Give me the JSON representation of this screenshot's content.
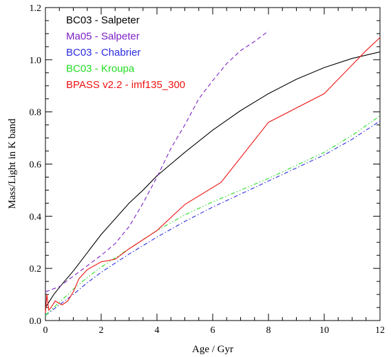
{
  "chart_data": {
    "type": "line",
    "xlabel": "Age / Gyr",
    "ylabel": "Mass/Light in K band",
    "xlim": [
      0,
      12
    ],
    "ylim": [
      0,
      1.2
    ],
    "xticks": [
      0,
      2,
      4,
      6,
      8,
      10,
      12
    ],
    "xtick_labels": [
      "0",
      "2",
      "4",
      "6",
      "8",
      "10",
      "12"
    ],
    "yticks": [
      0.0,
      0.2,
      0.4,
      0.6,
      0.8,
      1.0,
      1.2
    ],
    "ytick_labels": [
      "0.0",
      "0.2",
      "0.4",
      "0.6",
      "0.8",
      "1.0",
      "1.2"
    ],
    "grid": false,
    "legend_position": "top-left",
    "series": [
      {
        "name": "BC03 - Salpeter",
        "color": "#000000",
        "dash": "solid",
        "x": [
          0,
          0.3,
          0.6,
          1,
          1.5,
          2,
          2.5,
          3,
          3.5,
          4,
          5,
          6,
          7,
          8,
          9,
          10,
          11,
          12
        ],
        "y": [
          0.05,
          0.1,
          0.14,
          0.19,
          0.26,
          0.33,
          0.39,
          0.45,
          0.5,
          0.555,
          0.645,
          0.73,
          0.805,
          0.87,
          0.925,
          0.97,
          1.005,
          1.03
        ]
      },
      {
        "name": "Ma05 - Salpeter",
        "color": "#7b1fc4",
        "dash": "dashed",
        "x": [
          0,
          0.5,
          1,
          1.5,
          2,
          2.5,
          3,
          3.5,
          4,
          4.5,
          5,
          5.5,
          6,
          6.5,
          7,
          7.5,
          8
        ],
        "y": [
          0.11,
          0.13,
          0.17,
          0.21,
          0.25,
          0.295,
          0.36,
          0.45,
          0.55,
          0.66,
          0.75,
          0.85,
          0.92,
          0.985,
          1.035,
          1.07,
          1.11
        ]
      },
      {
        "name": "BC03 - Chabrier",
        "color": "#2b2be0",
        "dash": "dashdot",
        "x": [
          0,
          0.5,
          1,
          1.5,
          2,
          2.5,
          3,
          4,
          5,
          6,
          7,
          8,
          9,
          10,
          11,
          12
        ],
        "y": [
          0.02,
          0.06,
          0.1,
          0.145,
          0.185,
          0.22,
          0.255,
          0.32,
          0.38,
          0.435,
          0.485,
          0.535,
          0.585,
          0.635,
          0.695,
          0.765
        ]
      },
      {
        "name": "BC03 - Kroupa",
        "color": "#22dd22",
        "dash": "dashdotdot",
        "x": [
          0,
          0.5,
          1,
          1.5,
          2,
          2.5,
          3,
          4,
          5,
          6,
          7,
          8,
          9,
          10,
          11,
          12
        ],
        "y": [
          0.02,
          0.07,
          0.12,
          0.165,
          0.205,
          0.24,
          0.275,
          0.345,
          0.405,
          0.455,
          0.5,
          0.545,
          0.595,
          0.645,
          0.71,
          0.785
        ]
      },
      {
        "name": "BPASS v2.2 - imf135_300",
        "color": "#ee1111",
        "dash": "solid",
        "x": [
          0,
          0.05,
          0.12,
          0.2,
          0.35,
          0.5,
          0.6,
          0.8,
          1.0,
          1.2,
          1.5,
          2.0,
          2.5,
          3.0,
          4.0,
          5.0,
          6.3,
          8.0,
          10.0,
          11.5,
          12.0
        ],
        "y": [
          0.03,
          0.1,
          0.04,
          0.05,
          0.075,
          0.065,
          0.06,
          0.075,
          0.11,
          0.16,
          0.195,
          0.225,
          0.235,
          0.275,
          0.345,
          0.445,
          0.53,
          0.76,
          0.87,
          1.035,
          1.085
        ]
      }
    ]
  }
}
